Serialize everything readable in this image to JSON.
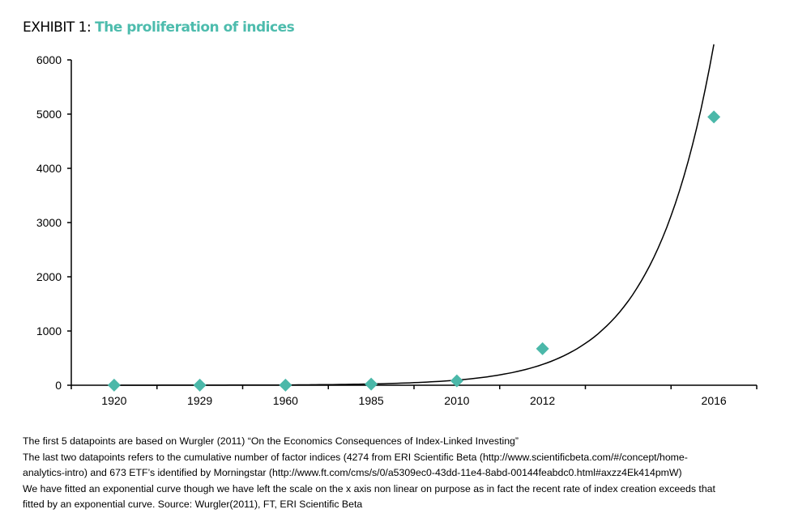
{
  "title": {
    "prefix": "EXHIBIT 1: ",
    "main": "The proliferation of indices"
  },
  "colors": {
    "accent": "#4dbcad",
    "marker": "#4bb8a9",
    "curve": "#000000"
  },
  "chart_data": {
    "type": "scatter",
    "categories": [
      "1920",
      "1929",
      "1960",
      "1985",
      "2010",
      "2012",
      "",
      "2016"
    ],
    "values": [
      1,
      1,
      1,
      20,
      80,
      673,
      null,
      4947
    ],
    "marker": "diamond",
    "trendline": "exponential",
    "ylim": [
      0,
      6000
    ],
    "yticks": [
      "0",
      "1000",
      "2000",
      "3000",
      "4000",
      "5000",
      "6000"
    ],
    "grid": false,
    "xlabel": "",
    "ylabel": ""
  },
  "notes": [
    "The first 5 datapoints  are based on Wurgler (2011) “On the Economics Consequences of Index-Linked Investing”",
    "The last two datapoints refers to the cumulative number of factor indices (4274 from ERI Scientific Beta (http://www.scientificbeta.com/#/concept/home-",
    "analytics-intro)  and 673  ETF’s identified by Morningstar (http://www.ft.com/cms/s/0/a5309ec0-43dd-11e4-8abd-00144feabdc0.html#axzz4Ek414pmW)",
    "We have fitted an exponential curve though we have left the scale on the x axis non linear on purpose as in fact the recent rate of index creation exceeds that",
    "fitted by an exponential curve. Source: Wurgler(2011), FT, ERI Scientific Beta"
  ]
}
